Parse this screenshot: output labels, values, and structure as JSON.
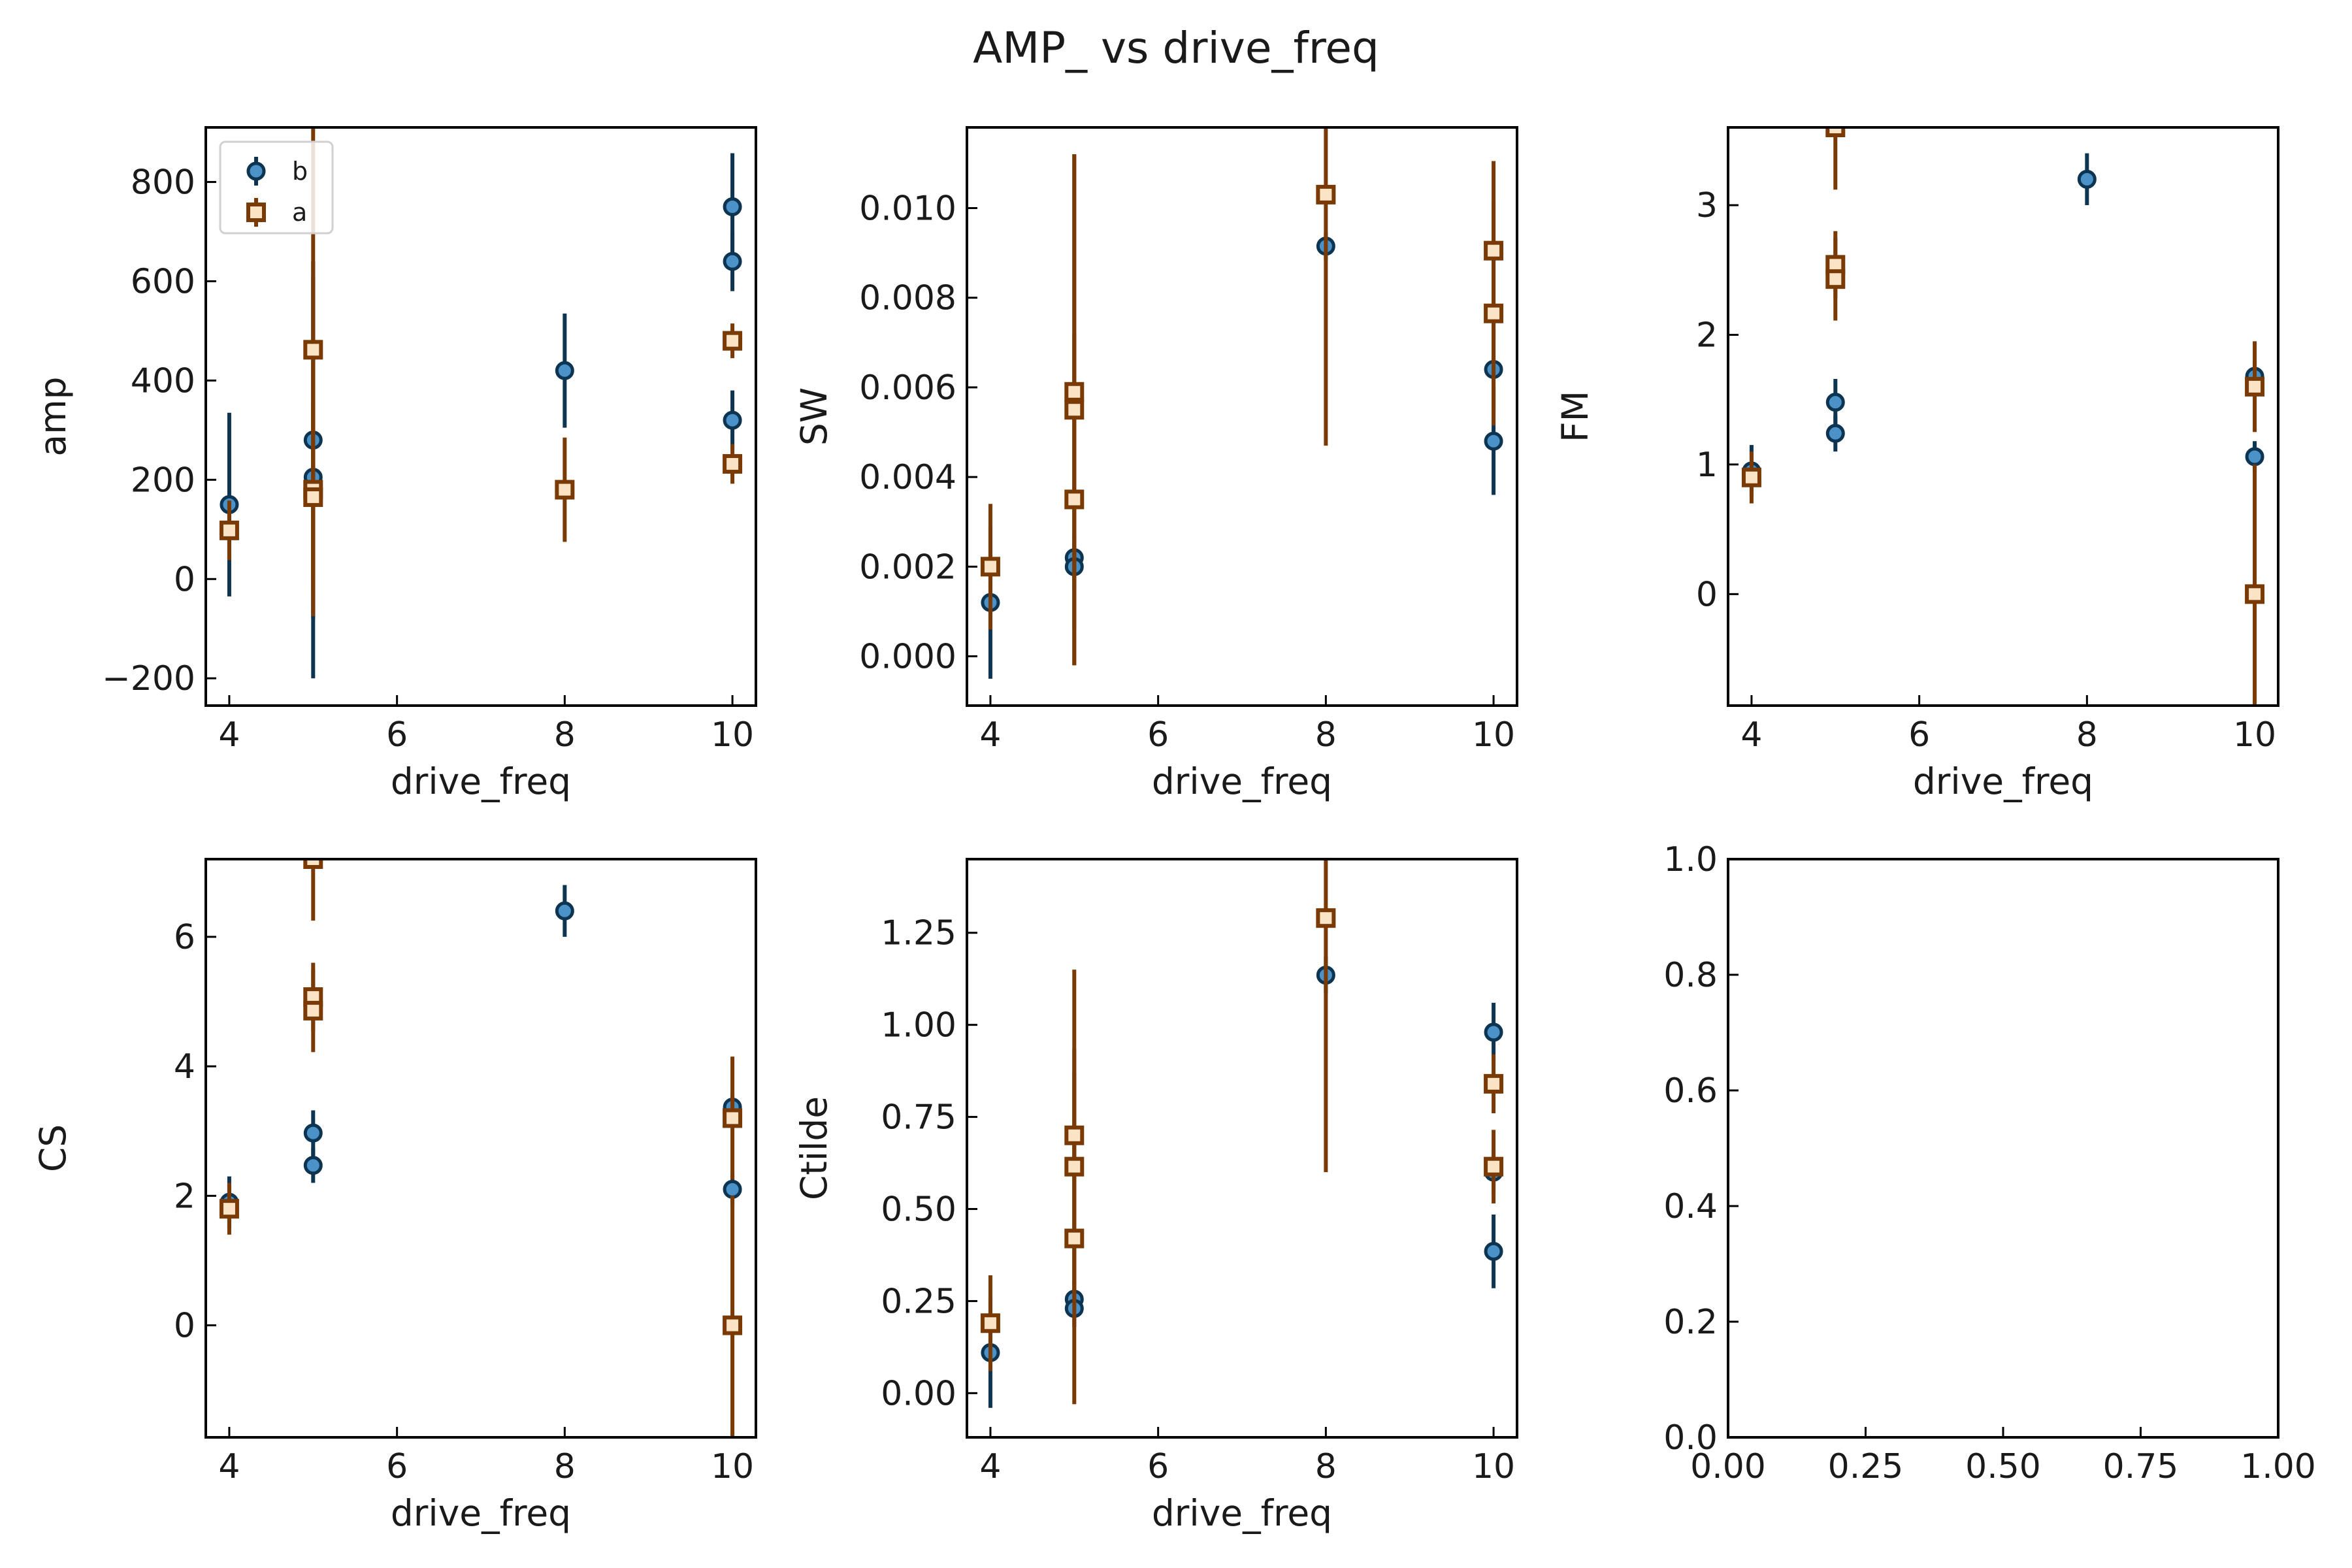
{
  "figure": {
    "title": "AMP_ vs drive_freq"
  },
  "legend": {
    "entries": [
      "b",
      "a"
    ]
  },
  "colors": {
    "b_line": "#0d3552",
    "b_face": "#4a92c8",
    "a_line": "#7a3a06",
    "a_face": "#fbe3c6"
  },
  "chart_data": [
    {
      "type": "scatter",
      "xlabel": "drive_freq",
      "ylabel": "amp",
      "xlim": [
        3.72,
        10.28
      ],
      "ylim": [
        -255,
        910
      ],
      "xticks": [
        4,
        6,
        8,
        10
      ],
      "yticks": [
        -200,
        0,
        200,
        400,
        600,
        800
      ],
      "ytick_labels": [
        "−200",
        "0",
        "200",
        "400",
        "600",
        "800"
      ],
      "legend": "upper-left",
      "series": [
        {
          "name": "b",
          "marker": "circle",
          "points": [
            {
              "x": 4,
              "y": 150,
              "yerr": 185
            },
            {
              "x": 5,
              "y": 280,
              "yerr": 360
            },
            {
              "x": 5,
              "y": 205,
              "yerr": 405
            },
            {
              "x": 8,
              "y": 420,
              "yerr": 115
            },
            {
              "x": 10,
              "y": 750,
              "yerr": 108
            },
            {
              "x": 10,
              "y": 640,
              "yerr": 60
            },
            {
              "x": 10,
              "y": 320,
              "yerr": 60
            }
          ]
        },
        {
          "name": "a",
          "marker": "square",
          "points": [
            {
              "x": 4,
              "y": 98,
              "yerr": 60
            },
            {
              "x": 5,
              "y": 462,
              "yerr": 460
            },
            {
              "x": 5,
              "y": 180,
              "yerr": 255
            },
            {
              "x": 5,
              "y": 165,
              "yerr": 190
            },
            {
              "x": 8,
              "y": 180,
              "yerr": 105
            },
            {
              "x": 10,
              "y": 480,
              "yerr": 35
            },
            {
              "x": 10,
              "y": 232,
              "yerr": 40
            }
          ]
        }
      ]
    },
    {
      "type": "scatter",
      "xlabel": "drive_freq",
      "ylabel": "SW",
      "xlim": [
        3.72,
        10.28
      ],
      "ylim": [
        -0.0011,
        0.0118
      ],
      "xticks": [
        4,
        6,
        8,
        10
      ],
      "yticks": [
        0.0,
        0.002,
        0.004,
        0.006,
        0.008,
        0.01
      ],
      "ytick_labels": [
        "0.000",
        "0.002",
        "0.004",
        "0.006",
        "0.008",
        "0.010"
      ],
      "series": [
        {
          "name": "b",
          "marker": "circle",
          "points": [
            {
              "x": 4,
              "y": 0.0012,
              "yerr": 0.0017
            },
            {
              "x": 5,
              "y": 0.0022,
              "yerr": 0.0005
            },
            {
              "x": 5,
              "y": 0.002,
              "yerr": 0.0005
            },
            {
              "x": 8,
              "y": 0.00915,
              "yerr": 0.0003
            },
            {
              "x": 10,
              "y": 0.0064,
              "yerr": 0.0009
            },
            {
              "x": 10,
              "y": 0.0048,
              "yerr": 0.0012
            }
          ]
        },
        {
          "name": "a",
          "marker": "square",
          "points": [
            {
              "x": 4,
              "y": 0.002,
              "yerr": 0.0014
            },
            {
              "x": 5,
              "y": 0.0059,
              "yerr": 0.0053
            },
            {
              "x": 5,
              "y": 0.0055,
              "yerr": 0.0057
            },
            {
              "x": 5,
              "y": 0.0035,
              "yerr": 0.0037
            },
            {
              "x": 8,
              "y": 0.0103,
              "yerr": 0.0056
            },
            {
              "x": 10,
              "y": 0.00905,
              "yerr": 0.002
            },
            {
              "x": 10,
              "y": 0.00765,
              "yerr": 0.0025
            }
          ]
        }
      ]
    },
    {
      "type": "scatter",
      "xlabel": "drive_freq",
      "ylabel": "FM",
      "xlim": [
        3.72,
        10.28
      ],
      "ylim": [
        -0.86,
        3.6
      ],
      "xticks": [
        4,
        6,
        8,
        10
      ],
      "yticks": [
        0,
        1,
        2,
        3
      ],
      "ytick_labels": [
        "0",
        "1",
        "2",
        "3"
      ],
      "series": [
        {
          "name": "b",
          "marker": "circle",
          "points": [
            {
              "x": 4,
              "y": 0.95,
              "yerr": 0.2
            },
            {
              "x": 5,
              "y": 1.48,
              "yerr": 0.18
            },
            {
              "x": 5,
              "y": 1.24,
              "yerr": 0.14
            },
            {
              "x": 8,
              "y": 3.2,
              "yerr": 0.2
            },
            {
              "x": 10,
              "y": 1.68,
              "yerr": 0.12
            },
            {
              "x": 10,
              "y": 1.06,
              "yerr": 0.12
            }
          ]
        },
        {
          "name": "a",
          "marker": "square",
          "points": [
            {
              "x": 4,
              "y": 0.9,
              "yerr": 0.2
            },
            {
              "x": 5,
              "y": 3.6,
              "yerr": 0.48
            },
            {
              "x": 5,
              "y": 2.54,
              "yerr": 0.26
            },
            {
              "x": 5,
              "y": 2.43,
              "yerr": 0.32
            },
            {
              "x": 10,
              "y": 1.6,
              "yerr": 0.35
            },
            {
              "x": 10,
              "y": 0.0,
              "yerr": 1.0
            }
          ]
        }
      ]
    },
    {
      "type": "scatter",
      "xlabel": "drive_freq",
      "ylabel": "CS",
      "xlim": [
        3.72,
        10.28
      ],
      "ylim": [
        -1.73,
        7.2
      ],
      "xticks": [
        4,
        6,
        8,
        10
      ],
      "yticks": [
        0,
        2,
        4,
        6
      ],
      "ytick_labels": [
        "0",
        "2",
        "4",
        "6"
      ],
      "series": [
        {
          "name": "b",
          "marker": "circle",
          "points": [
            {
              "x": 4,
              "y": 1.9,
              "yerr": 0.4
            },
            {
              "x": 5,
              "y": 2.97,
              "yerr": 0.35
            },
            {
              "x": 5,
              "y": 2.47,
              "yerr": 0.27
            },
            {
              "x": 8,
              "y": 6.4,
              "yerr": 0.4
            },
            {
              "x": 10,
              "y": 3.37,
              "yerr": 0.2
            },
            {
              "x": 10,
              "y": 2.1,
              "yerr": 0.25
            }
          ]
        },
        {
          "name": "a",
          "marker": "square",
          "points": [
            {
              "x": 4,
              "y": 1.8,
              "yerr": 0.4
            },
            {
              "x": 5,
              "y": 7.2,
              "yerr": 0.95
            },
            {
              "x": 5,
              "y": 5.07,
              "yerr": 0.53
            },
            {
              "x": 5,
              "y": 4.86,
              "yerr": 0.64
            },
            {
              "x": 10,
              "y": 3.2,
              "yerr": 0.95
            },
            {
              "x": 10,
              "y": 0.0,
              "yerr": 2.0
            }
          ]
        }
      ]
    },
    {
      "type": "scatter",
      "xlabel": "drive_freq",
      "ylabel": "Ctilde",
      "xlim": [
        3.72,
        10.28
      ],
      "ylim": [
        -0.12,
        1.45
      ],
      "xticks": [
        4,
        6,
        8,
        10
      ],
      "yticks": [
        0.0,
        0.25,
        0.5,
        0.75,
        1.0,
        1.25
      ],
      "ytick_labels": [
        "0.00",
        "0.25",
        "0.50",
        "0.75",
        "1.00",
        "1.25"
      ],
      "series": [
        {
          "name": "b",
          "marker": "circle",
          "points": [
            {
              "x": 4,
              "y": 0.11,
              "yerr": 0.15
            },
            {
              "x": 5,
              "y": 0.255,
              "yerr": 0.05
            },
            {
              "x": 5,
              "y": 0.23,
              "yerr": 0.05
            },
            {
              "x": 8,
              "y": 1.135,
              "yerr": 0.05
            },
            {
              "x": 10,
              "y": 0.98,
              "yerr": 0.08
            },
            {
              "x": 10,
              "y": 0.6,
              "yerr": 0.06
            },
            {
              "x": 10,
              "y": 0.385,
              "yerr": 0.1
            }
          ]
        },
        {
          "name": "a",
          "marker": "square",
          "points": [
            {
              "x": 4,
              "y": 0.19,
              "yerr": 0.13
            },
            {
              "x": 5,
              "y": 0.7,
              "yerr": 0.45
            },
            {
              "x": 5,
              "y": 0.615,
              "yerr": 0.32
            },
            {
              "x": 5,
              "y": 0.42,
              "yerr": 0.45
            },
            {
              "x": 8,
              "y": 1.29,
              "yerr": 0.69
            },
            {
              "x": 10,
              "y": 0.84,
              "yerr": 0.08
            },
            {
              "x": 10,
              "y": 0.615,
              "yerr": 0.1
            }
          ]
        }
      ]
    },
    {
      "type": "scatter",
      "xlabel": "",
      "ylabel": "",
      "xlim": [
        0,
        1
      ],
      "ylim": [
        0,
        1
      ],
      "xticks": [
        0,
        0.25,
        0.5,
        0.75,
        1.0
      ],
      "xtick_labels": [
        "0.00",
        "0.25",
        "0.50",
        "0.75",
        "1.00"
      ],
      "yticks": [
        0,
        0.2,
        0.4,
        0.6,
        0.8,
        1.0
      ],
      "ytick_labels": [
        "0.0",
        "0.2",
        "0.4",
        "0.6",
        "0.8",
        "1.0"
      ],
      "series": []
    }
  ]
}
